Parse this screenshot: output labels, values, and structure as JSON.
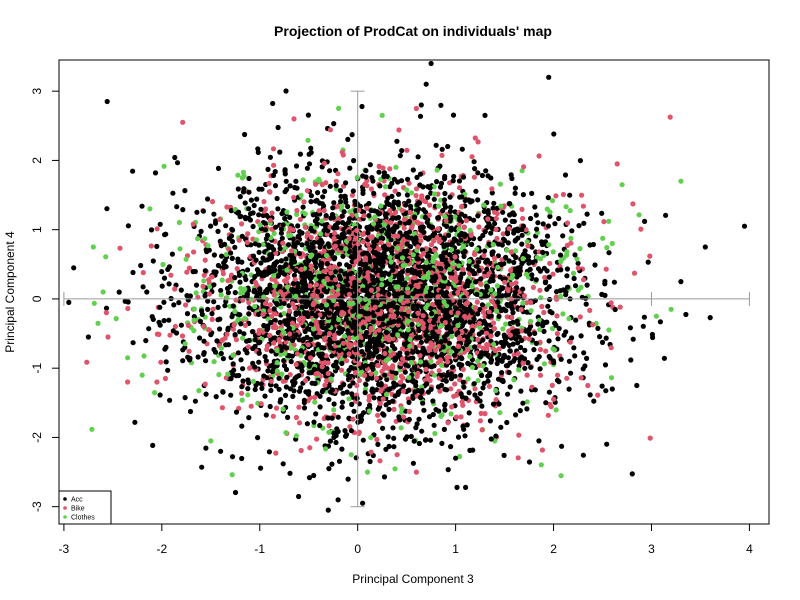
{
  "chart_data": {
    "type": "scatter",
    "title": "Projection of ProdCat on individuals' map",
    "xlabel": "Principal Component 3",
    "ylabel": "Principal Component 4",
    "xlim": [
      -3.05,
      4.2
    ],
    "ylim": [
      -3.25,
      3.45
    ],
    "xticks": [
      -3,
      -2,
      -1,
      0,
      1,
      2,
      3,
      4
    ],
    "yticks": [
      -3,
      -2,
      -1,
      0,
      1,
      2,
      3
    ],
    "legend_placement": "bottom-left",
    "grid": false,
    "crosshair": {
      "horizontal": {
        "y": 0,
        "x_from": -3,
        "x_to": 4,
        "cap_x": [
          -3,
          3,
          4
        ]
      },
      "vertical": {
        "x": 0,
        "y_from": -3,
        "y_to": 3
      }
    },
    "series": [
      {
        "name": "Acc",
        "color": "#000000",
        "count": 3400,
        "spread": [
          0.95,
          0.9
        ],
        "points": [
          [
            3.95,
            1.05
          ],
          [
            3.55,
            0.75
          ],
          [
            3.6,
            -0.27
          ],
          [
            3.3,
            0.25
          ],
          [
            0.75,
            3.4
          ],
          [
            1.95,
            3.2
          ],
          [
            0.7,
            3.1
          ],
          [
            -2.9,
            0.45
          ],
          [
            -2.95,
            -0.05
          ],
          [
            -2.75,
            -0.55
          ],
          [
            -0.3,
            -3.05
          ],
          [
            0.05,
            -2.95
          ],
          [
            -0.2,
            -2.9
          ],
          [
            1.85,
            -2.05
          ],
          [
            2.85,
            -1.25
          ],
          [
            2.6,
            -1.3
          ],
          [
            -1.4,
            -2.2
          ],
          [
            1.0,
            -2.3
          ],
          [
            0.65,
            2.8
          ],
          [
            1.3,
            2.65
          ]
        ]
      },
      {
        "name": "Bike",
        "color": "#df536b",
        "count": 1500,
        "spread": [
          0.9,
          0.85
        ],
        "points": [
          [
            2.65,
            1.95
          ],
          [
            -2.35,
            -1.2
          ],
          [
            -2.55,
            -0.55
          ],
          [
            0.6,
            2.75
          ],
          [
            -0.65,
            2.6
          ],
          [
            2.35,
            -1.25
          ],
          [
            0.6,
            -2.5
          ],
          [
            -2.05,
            -1.2
          ]
        ]
      },
      {
        "name": "Clothes",
        "color": "#61d04f",
        "count": 800,
        "spread": [
          0.95,
          0.85
        ],
        "points": [
          [
            3.3,
            1.7
          ],
          [
            3.2,
            -0.15
          ],
          [
            3.05,
            -0.25
          ],
          [
            2.7,
            1.65
          ],
          [
            2.6,
            0.8
          ],
          [
            0.25,
            2.65
          ],
          [
            -2.7,
            0.75
          ],
          [
            -2.6,
            0.1
          ],
          [
            -2.2,
            -1.1
          ],
          [
            -2.35,
            -0.85
          ],
          [
            1.4,
            -2.05
          ],
          [
            2.0,
            -0.95
          ],
          [
            -1.5,
            -2.05
          ],
          [
            0.1,
            -2.5
          ]
        ]
      }
    ]
  }
}
